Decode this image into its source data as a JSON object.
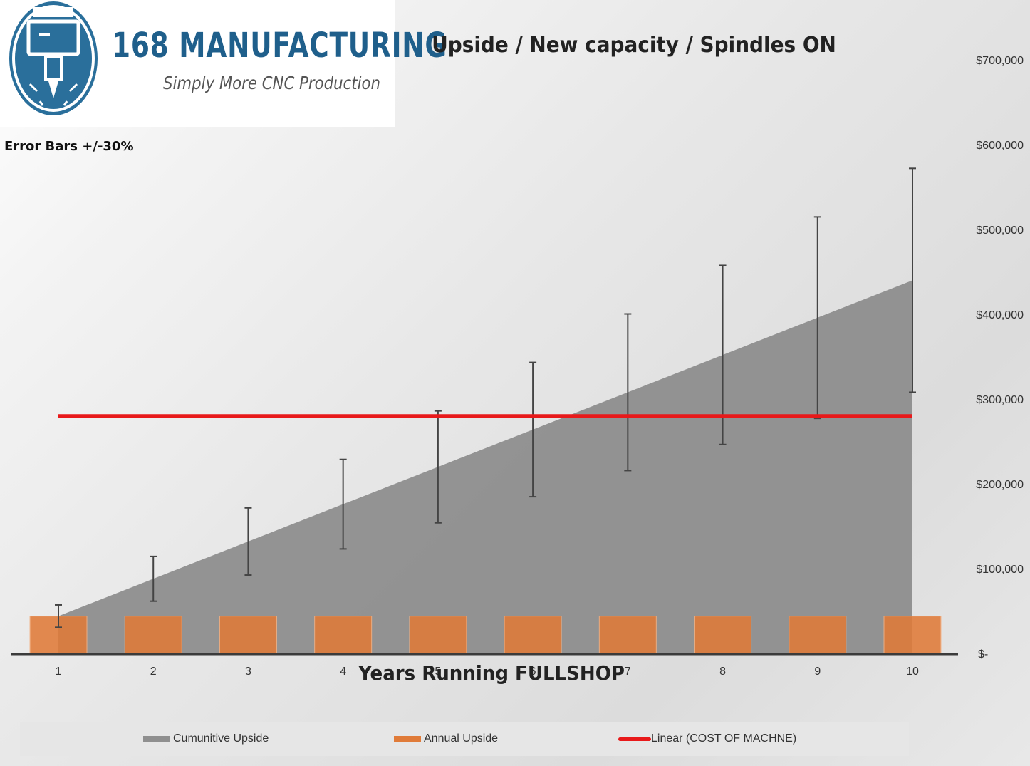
{
  "brand": {
    "name": "168 MANUFACTURING",
    "tagline": "Simply More CNC Production"
  },
  "chart_data": {
    "type": "bar",
    "title": "Upside / New capacity / Spindles ON",
    "annotation": "Error Bars +/-30%",
    "xlabel": "Years Running FULLSHOP",
    "ylabel": "",
    "categories": [
      "1",
      "2",
      "3",
      "4",
      "5",
      "6",
      "7",
      "8",
      "9",
      "10"
    ],
    "y_tick_labels": [
      "$-",
      "$100,000",
      "$200,000",
      "$300,000",
      "$400,000",
      "$500,000",
      "$600,000",
      "$700,000"
    ],
    "ylim": [
      0,
      700000
    ],
    "grid": false,
    "legend_position": "bottom",
    "series": [
      {
        "name": "Cumunitive Upside",
        "type": "area",
        "color": "#8f8f8f",
        "values": [
          44000,
          88000,
          132000,
          176000,
          220000,
          264000,
          308000,
          352000,
          396000,
          440000
        ],
        "error_percent": 30
      },
      {
        "name": "Annual Upside",
        "type": "bar",
        "color": "#e07b39",
        "values": [
          44000,
          44000,
          44000,
          44000,
          44000,
          44000,
          44000,
          44000,
          44000,
          44000
        ]
      },
      {
        "name": "Linear  (COST OF MACHNE)",
        "type": "line",
        "color": "#e8191a",
        "values": [
          280000,
          280000,
          280000,
          280000,
          280000,
          280000,
          280000,
          280000,
          280000,
          280000
        ]
      }
    ]
  }
}
